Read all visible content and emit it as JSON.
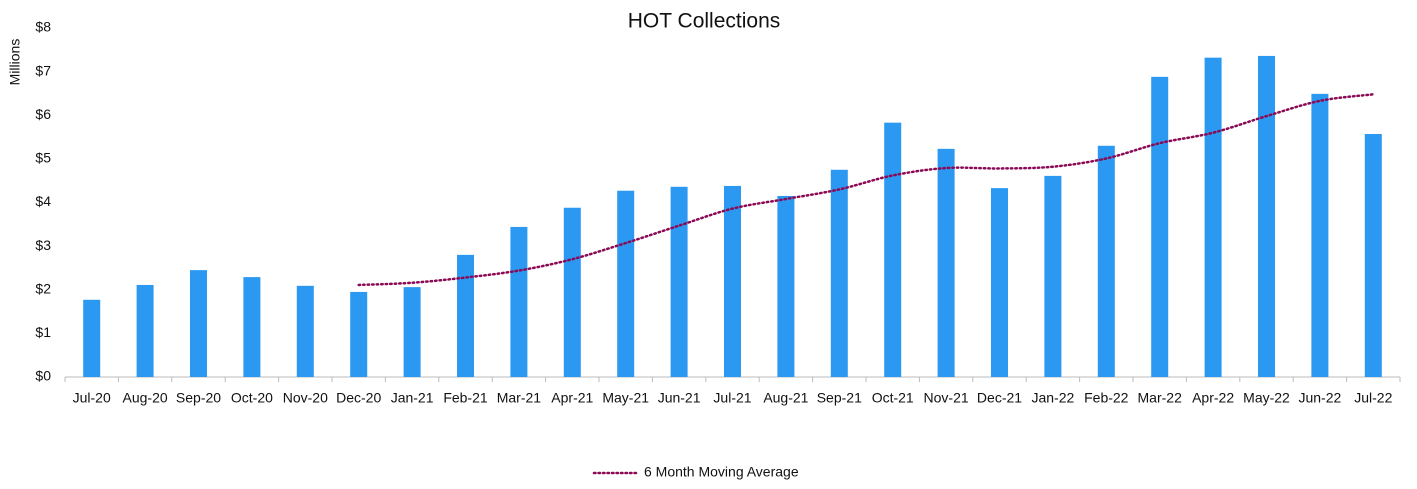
{
  "chart_data": {
    "type": "bar",
    "title": "HOT Collections",
    "ylabel": "Millions",
    "categories": [
      "Jul-20",
      "Aug-20",
      "Sep-20",
      "Oct-20",
      "Nov-20",
      "Dec-20",
      "Jan-21",
      "Feb-21",
      "Mar-21",
      "Apr-21",
      "May-21",
      "Jun-21",
      "Jul-21",
      "Aug-21",
      "Sep-21",
      "Oct-21",
      "Nov-21",
      "Dec-21",
      "Jan-22",
      "Feb-22",
      "Mar-22",
      "Apr-22",
      "May-22",
      "Jun-22",
      "Jul-22"
    ],
    "values": [
      1.77,
      2.11,
      2.45,
      2.29,
      2.09,
      1.95,
      2.06,
      2.8,
      3.44,
      3.88,
      4.27,
      4.36,
      4.38,
      4.15,
      4.75,
      5.83,
      5.23,
      4.33,
      4.61,
      5.3,
      6.88,
      7.32,
      7.36,
      6.49,
      5.57
    ],
    "color": "#2b99f2",
    "series": [
      {
        "name": "6 Month Moving Average",
        "color": "#8b0a55",
        "values": [
          null,
          null,
          null,
          null,
          null,
          2.11,
          2.16,
          2.28,
          2.44,
          2.7,
          3.07,
          3.47,
          3.86,
          4.08,
          4.3,
          4.62,
          4.79,
          4.78,
          4.82,
          5.01,
          5.36,
          5.6,
          5.98,
          6.33,
          6.48
        ]
      }
    ],
    "ylim": [
      0,
      8
    ],
    "yticks": [
      {
        "value": 0,
        "label": "$0"
      },
      {
        "value": 1,
        "label": "$1"
      },
      {
        "value": 2,
        "label": "$2"
      },
      {
        "value": 3,
        "label": "$3"
      },
      {
        "value": 4,
        "label": "$4"
      },
      {
        "value": 5,
        "label": "$5"
      },
      {
        "value": 6,
        "label": "$6"
      },
      {
        "value": 7,
        "label": "$7"
      },
      {
        "value": 8,
        "label": "$8"
      }
    ],
    "grid": false,
    "legend": "bottom"
  }
}
